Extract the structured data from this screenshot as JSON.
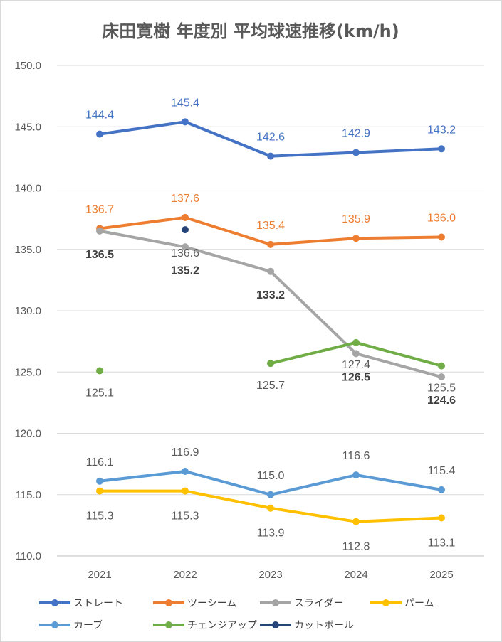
{
  "chart_data": {
    "type": "line",
    "title": "床田寛樹 年度別 平均球速推移(km/h)",
    "categories": [
      "2021",
      "2022",
      "2023",
      "2024",
      "2025"
    ],
    "ylim": [
      110,
      150
    ],
    "yticks": [
      "110.0",
      "115.0",
      "120.0",
      "125.0",
      "130.0",
      "135.0",
      "140.0",
      "145.0",
      "150.0"
    ],
    "grid": true,
    "legend_position": "bottom",
    "series": [
      {
        "name": "ストレート",
        "color": "#4472C4",
        "values": [
          144.4,
          145.4,
          142.6,
          142.9,
          143.2
        ],
        "labels": [
          "144.4",
          "145.4",
          "142.6",
          "142.9",
          "143.2"
        ]
      },
      {
        "name": "ツーシーム",
        "color": "#ED7D31",
        "values": [
          136.7,
          137.6,
          135.4,
          135.9,
          136.0
        ],
        "labels": [
          "136.7",
          "137.6",
          "135.4",
          "135.9",
          "136.0"
        ]
      },
      {
        "name": "スライダー",
        "color": "#A5A5A5",
        "values": [
          136.5,
          135.2,
          133.2,
          126.5,
          124.6
        ],
        "labels": [
          "136.5",
          "135.2",
          "133.2",
          "126.5",
          "124.6"
        ]
      },
      {
        "name": "パーム",
        "color": "#FFC000",
        "values": [
          115.3,
          115.3,
          113.9,
          112.8,
          113.1
        ],
        "labels": [
          "115.3",
          "115.3",
          "113.9",
          "112.8",
          "113.1"
        ]
      },
      {
        "name": "カーブ",
        "color": "#5B9BD5",
        "values": [
          116.1,
          116.9,
          115.0,
          116.6,
          115.4
        ],
        "labels": [
          "116.1",
          "116.9",
          "115.0",
          "116.6",
          "115.4"
        ]
      },
      {
        "name": "チェンジアップ",
        "color": "#70AD47",
        "values": [
          125.1,
          null,
          125.7,
          127.4,
          125.5
        ],
        "labels": [
          "125.1",
          "",
          "125.7",
          "127.4",
          "125.5"
        ]
      },
      {
        "name": "カットボール",
        "color": "#264478",
        "values": [
          null,
          136.6,
          null,
          null,
          null
        ],
        "labels": [
          "",
          "136.6",
          "",
          "",
          ""
        ]
      }
    ]
  }
}
